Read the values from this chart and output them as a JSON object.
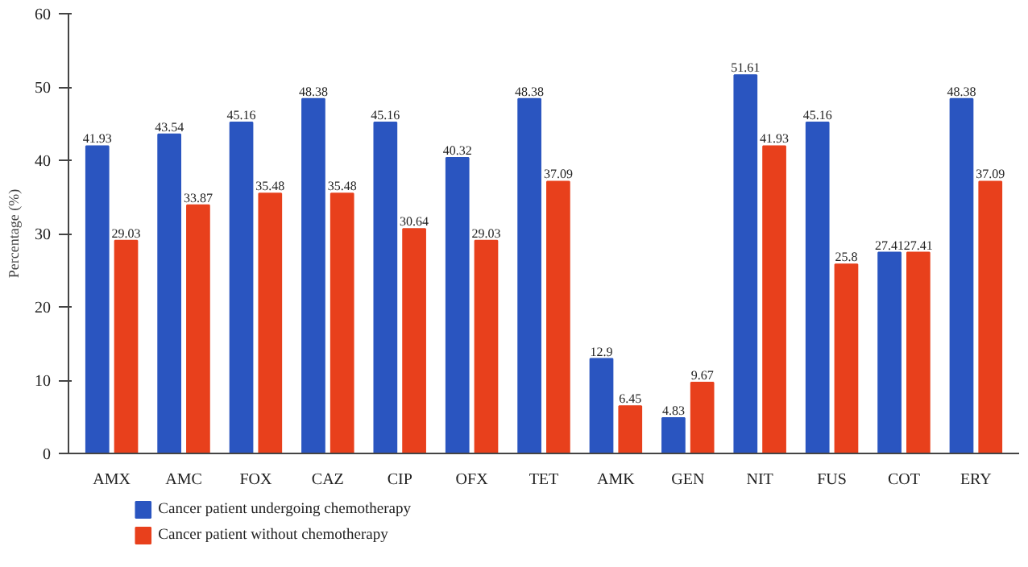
{
  "chart_data": {
    "type": "bar",
    "ylabel": "Percentage (%)",
    "categories": [
      "AMX",
      "AMC",
      "FOX",
      "CAZ",
      "CIP",
      "OFX",
      "TET",
      "AMK",
      "GEN",
      "NIT",
      "FUS",
      "COT",
      "ERY"
    ],
    "series": [
      {
        "name": "Cancer patient undergoing chemotherapy",
        "color": "#2a55c0",
        "values": [
          41.93,
          43.54,
          45.16,
          48.38,
          45.16,
          40.32,
          48.38,
          12.9,
          4.83,
          51.61,
          45.16,
          27.41,
          48.38
        ]
      },
      {
        "name": "Cancer patient without chemotherapy",
        "color": "#e8401c",
        "values": [
          29.03,
          33.87,
          35.48,
          35.48,
          30.64,
          29.03,
          37.09,
          6.45,
          9.67,
          41.93,
          25.8,
          27.41,
          37.09
        ]
      }
    ],
    "ylim": [
      0,
      60
    ],
    "yticks": [
      0,
      10,
      20,
      30,
      40,
      50,
      60
    ],
    "grid": false,
    "legend": "bottom left",
    "data_labels": true
  }
}
